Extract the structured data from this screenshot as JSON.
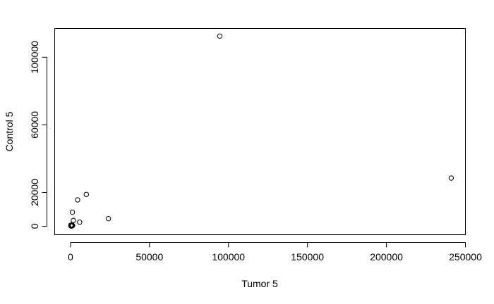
{
  "chart_data": {
    "type": "scatter",
    "title": "",
    "xlabel": "Tumor 5",
    "ylabel": "Control 5",
    "xlim": [
      -10000,
      250000
    ],
    "ylim": [
      -5000,
      117000
    ],
    "x_ticks": [
      0,
      50000,
      100000,
      150000,
      200000,
      250000
    ],
    "x_tick_labels": [
      "0",
      "50000",
      "100000",
      "150000",
      "200000",
      "250000"
    ],
    "y_ticks": [
      0,
      20000,
      60000,
      100000
    ],
    "y_tick_labels": [
      "0",
      "20000",
      "60000",
      "100000"
    ],
    "grid": false,
    "legend": "none",
    "marker": "open-circle",
    "points": [
      {
        "x": 94500,
        "y": 112500
      },
      {
        "x": 241000,
        "y": 28500
      },
      {
        "x": 10000,
        "y": 18800
      },
      {
        "x": 4500,
        "y": 15600
      },
      {
        "x": 1200,
        "y": 8300
      },
      {
        "x": 1800,
        "y": 3400
      },
      {
        "x": 5800,
        "y": 2400
      },
      {
        "x": 24000,
        "y": 4500
      },
      {
        "x": 500,
        "y": 500
      },
      {
        "x": 800,
        "y": 300
      },
      {
        "x": 300,
        "y": 200
      },
      {
        "x": 1000,
        "y": 800
      },
      {
        "x": 600,
        "y": 100
      },
      {
        "x": 200,
        "y": 600
      },
      {
        "x": 1300,
        "y": 400
      }
    ]
  }
}
